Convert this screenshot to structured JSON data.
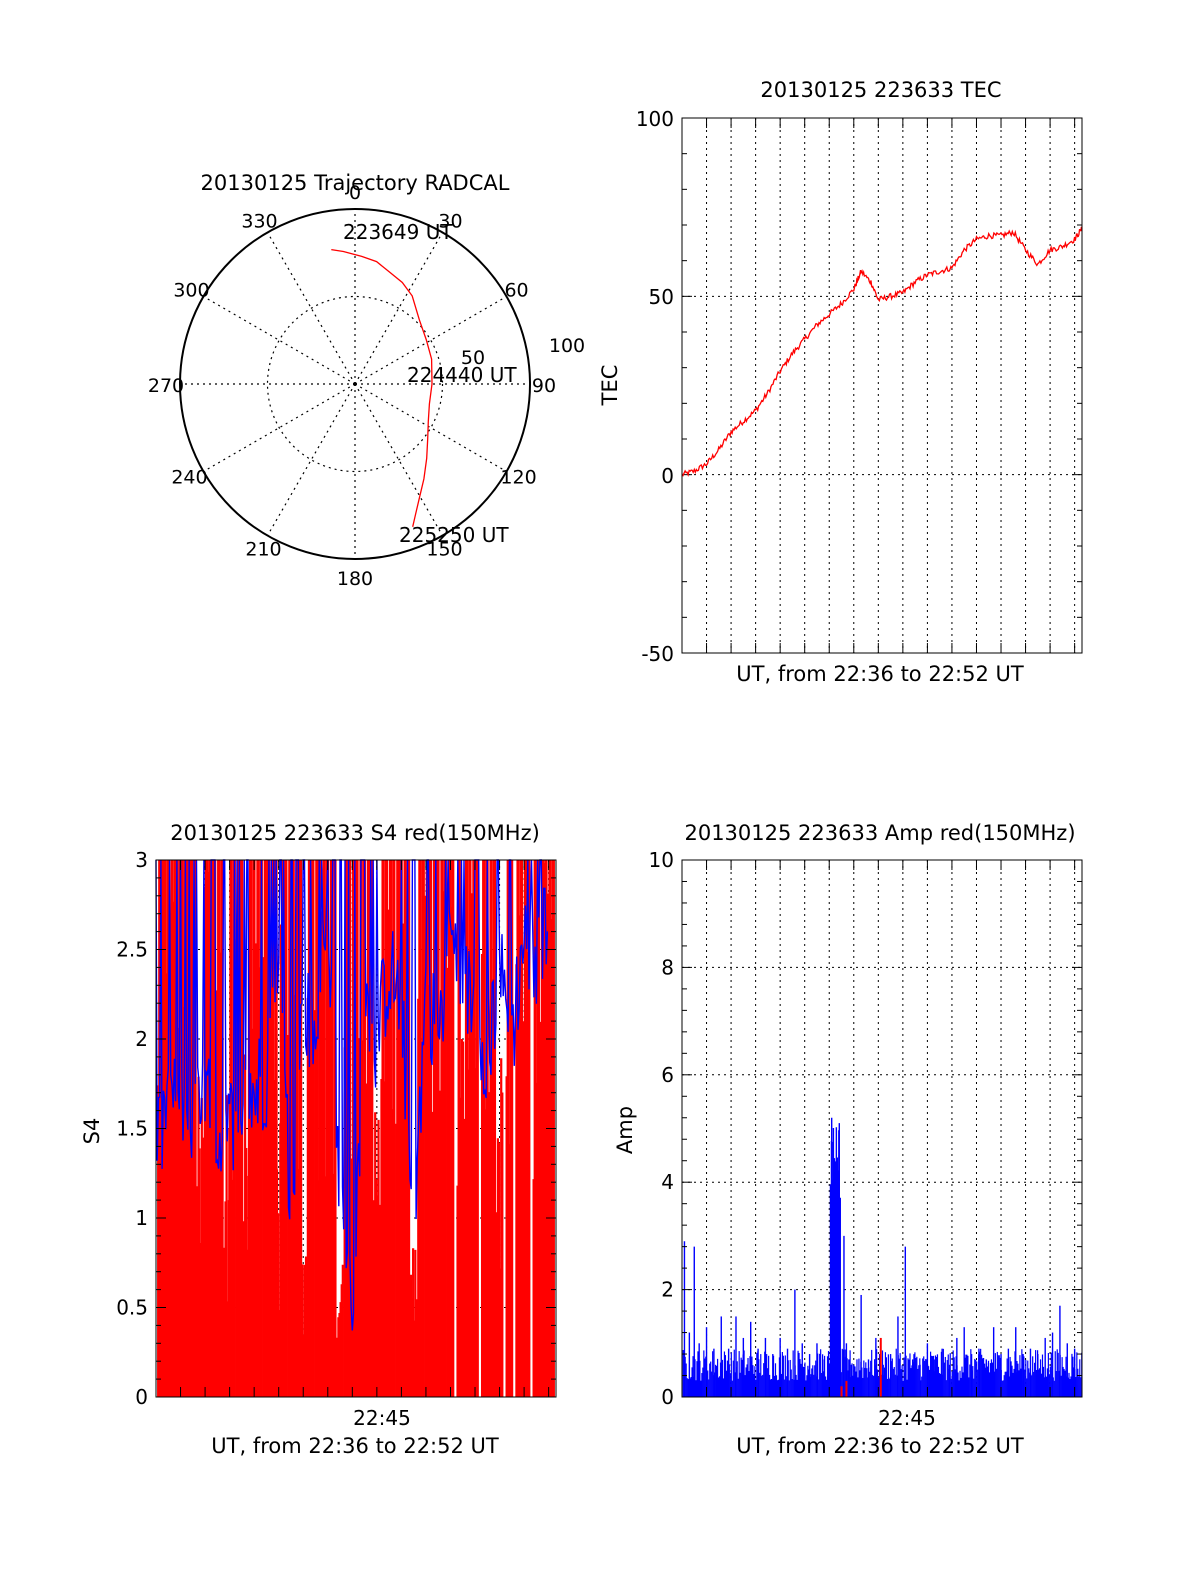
{
  "colors": {
    "red": "#ff0000",
    "blue": "#0000ff",
    "axis": "#000000",
    "grid": "#000000"
  },
  "chart_data": [
    {
      "id": "trajectory",
      "type": "polar",
      "title": "20130125 Trajectory RADCAL",
      "angle_labels": [
        "0",
        "30",
        "60",
        "90",
        "120",
        "150",
        "180",
        "210",
        "240",
        "270",
        "300",
        "330"
      ],
      "radial_labels": [
        "50",
        "100"
      ],
      "rmax": 100,
      "track": {
        "azimuth_deg": [
          350,
          355,
          3,
          10,
          17,
          25,
          33,
          45,
          58,
          72,
          90,
          105,
          117,
          127,
          136,
          144,
          150,
          155,
          158
        ],
        "zenith_deg": [
          78,
          76,
          73,
          71,
          67,
          64,
          60,
          52,
          48,
          46,
          44,
          44,
          47,
          52,
          59,
          67,
          74,
          82,
          88
        ]
      },
      "annotations": [
        "223649 UT",
        "224440 UT",
        "225250 UT"
      ]
    },
    {
      "id": "tec",
      "type": "line",
      "title": "20130125 223633 TEC",
      "xlabel": "UT, from 22:36 to 22:52 UT",
      "ylabel": "TEC",
      "ylim": [
        -50,
        100
      ],
      "yticks": [
        "-50",
        "0",
        "50",
        "100"
      ],
      "xlim_min": [
        0,
        16.3
      ],
      "grid": true,
      "series": [
        {
          "color": "red",
          "x_min": [
            0,
            0.5,
            1.0,
            1.5,
            2.0,
            2.5,
            3.0,
            3.5,
            4.0,
            4.5,
            5.0,
            5.5,
            6.0,
            6.5,
            7.0,
            7.3,
            7.7,
            8.0,
            8.5,
            9.0,
            9.5,
            10.0,
            10.5,
            11.0,
            11.5,
            12.0,
            12.5,
            13.0,
            13.5,
            14.0,
            14.5,
            15.0,
            15.5,
            16.0,
            16.3
          ],
          "y": [
            0,
            1,
            3,
            7,
            12,
            15,
            18,
            23,
            29,
            34,
            38,
            42,
            45,
            48,
            52,
            57,
            54,
            49,
            50,
            51,
            54,
            56,
            57,
            58,
            63,
            66,
            67,
            67,
            68,
            63,
            59,
            63,
            64,
            66,
            69
          ]
        }
      ]
    },
    {
      "id": "s4",
      "type": "bar",
      "title": "20130125 223633 S4 red(150MHz)",
      "xlabel": "UT, from 22:36 to 22:52 UT",
      "xtick": "22:45",
      "ylabel": "S4",
      "ylim": [
        0,
        3
      ],
      "yticks": [
        "0",
        "0.5",
        "1",
        "1.5",
        "2",
        "2.5",
        "3"
      ],
      "xlim_min": [
        0,
        16.3
      ],
      "grid": true,
      "series": [
        {
          "color": "red",
          "note": "dense near-saturated vertical spikes",
          "x_min": [
            0.2,
            0.4,
            0.5,
            0.7,
            0.9,
            1.1,
            1.3,
            1.5,
            1.8,
            2.1,
            2.3,
            2.6,
            2.9,
            3.1,
            3.4,
            3.7,
            3.9,
            4.2,
            4.5,
            4.8,
            5.0,
            5.2,
            5.5,
            5.8,
            6.0,
            6.3,
            6.6,
            6.9,
            7.2,
            7.5,
            7.8,
            8.1,
            8.4,
            8.7,
            9.0,
            9.3,
            9.6,
            9.9,
            10.2,
            10.5,
            10.8,
            11.1,
            11.4,
            11.7,
            12.0,
            12.4,
            12.7,
            13.0,
            13.4,
            13.7,
            14.0,
            14.4,
            14.8,
            15.1,
            15.5,
            15.8,
            16.1
          ],
          "y": [
            3,
            3,
            1.2,
            3,
            3,
            3,
            3,
            3,
            1.4,
            3,
            3,
            3,
            1.4,
            3,
            3,
            1.5,
            3,
            3,
            3,
            3,
            1.2,
            3,
            3,
            3,
            0.8,
            3,
            3,
            3,
            3,
            0.6,
            3,
            3,
            3,
            3,
            1.5,
            3,
            3,
            3,
            3,
            0.7,
            3,
            3,
            3,
            3,
            3,
            2.5,
            3,
            3,
            3,
            3,
            1.5,
            3,
            3,
            3,
            3,
            3,
            3
          ]
        },
        {
          "color": "blue",
          "note": "noisy S4 trace",
          "x_min": [
            0,
            0.5,
            1.0,
            1.5,
            2.0,
            2.5,
            3.0,
            3.5,
            4.0,
            4.5,
            5.0,
            5.5,
            6.0,
            6.5,
            7.0,
            7.5,
            8.0,
            8.5,
            9.0,
            9.5,
            10.0,
            10.5,
            11.0,
            11.5,
            12.0,
            12.5,
            13.0,
            13.5,
            14.0,
            14.5,
            15.0,
            15.5,
            16.0
          ],
          "y": [
            1.3,
            1.7,
            1.6,
            1.5,
            1.7,
            1.4,
            1.5,
            1.7,
            1.7,
            1.8,
            2.3,
            1.1,
            2.2,
            2.0,
            2.7,
            1.0,
            0.5,
            2.2,
            2.0,
            2.4,
            2.2,
            0.9,
            2.3,
            2.0,
            2.6,
            2.3,
            2.2,
            1.9,
            2.4,
            2.0,
            2.6,
            2.3,
            2.8
          ]
        }
      ]
    },
    {
      "id": "amp",
      "type": "bar",
      "title": "20130125 223633 Amp red(150MHz)",
      "xlabel": "UT, from 22:36 to 22:52 UT",
      "xtick": "22:45",
      "ylabel": "Amp",
      "ylim": [
        0,
        10
      ],
      "yticks": [
        "0",
        "2",
        "4",
        "6",
        "8",
        "10"
      ],
      "xlim_min": [
        0,
        16.3
      ],
      "grid": true,
      "series": [
        {
          "color": "blue",
          "x_min": [
            0.1,
            0.3,
            0.5,
            0.7,
            1.0,
            1.3,
            1.6,
            1.9,
            2.2,
            2.5,
            2.8,
            3.1,
            3.4,
            3.7,
            4.0,
            4.3,
            4.6,
            4.9,
            5.2,
            5.5,
            5.8,
            6.1,
            6.4,
            6.6,
            6.7,
            6.8,
            6.9,
            7.0,
            7.3,
            7.6,
            7.9,
            8.2,
            8.5,
            8.8,
            9.1,
            9.4,
            9.7,
            10.0,
            10.3,
            10.6,
            10.9,
            11.2,
            11.5,
            11.8,
            12.1,
            12.4,
            12.7,
            13.0,
            13.3,
            13.6,
            13.9,
            14.2,
            14.5,
            14.8,
            15.1,
            15.4,
            15.7,
            16.0
          ],
          "y": [
            2.9,
            1.2,
            2.8,
            1.0,
            1.3,
            0.9,
            1.5,
            0.9,
            1.5,
            1.1,
            1.4,
            0.9,
            1.1,
            0.8,
            1.1,
            0.9,
            2.0,
            1.0,
            0.8,
            1.0,
            0.7,
            5.2,
            4.5,
            3.0,
            1.0,
            0.7,
            0.6,
            0.6,
            1.9,
            0.7,
            1.1,
            0.6,
            0.8,
            1.5,
            2.8,
            0.7,
            0.6,
            1.0,
            0.7,
            0.9,
            0.6,
            1.1,
            1.3,
            0.8,
            0.9,
            0.7,
            1.3,
            0.8,
            0.9,
            1.3,
            0.8,
            0.9,
            0.8,
            1.1,
            1.2,
            1.7,
            1.0,
            0.9
          ]
        },
        {
          "color": "red",
          "x_min": [
            6.5,
            6.7,
            8.1
          ],
          "y": [
            0.2,
            0.3,
            1.1
          ]
        }
      ]
    }
  ]
}
